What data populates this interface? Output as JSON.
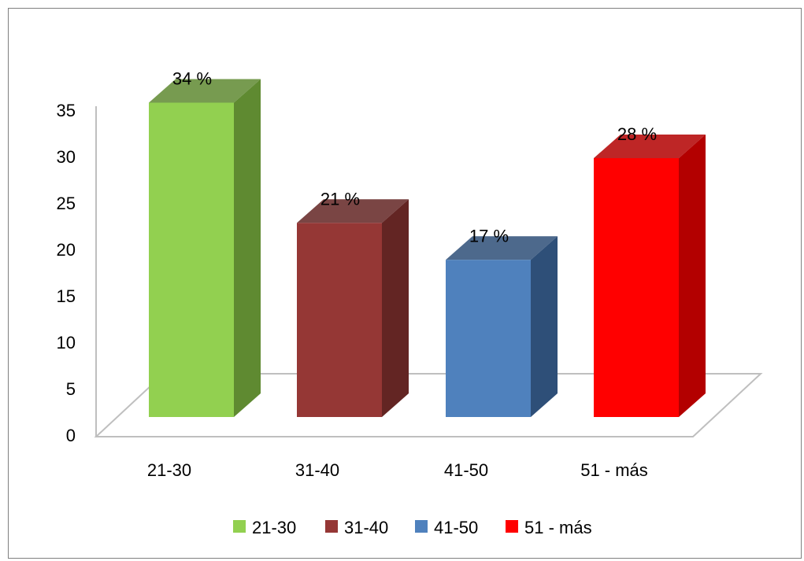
{
  "chart_data": {
    "type": "bar",
    "title": "",
    "xlabel": "",
    "ylabel": "",
    "categories": [
      "21-30",
      "31-40",
      "41-50",
      "51 - más"
    ],
    "values": [
      34,
      21,
      17,
      28
    ],
    "data_labels": [
      "34 %",
      "21 %",
      "17 %",
      "28 %"
    ],
    "colors": [
      "#92d050",
      "#953735",
      "#4f81bd",
      "#ff0000"
    ],
    "side_colors": [
      "#5f8a31",
      "#632523",
      "#2e4f78",
      "#b30000"
    ],
    "ylim": [
      0,
      35
    ],
    "yticks": [
      "0",
      "5",
      "10",
      "15",
      "20",
      "25",
      "30",
      "35"
    ],
    "legend": {
      "position": "bottom",
      "entries": [
        "21-30",
        "31-40",
        "41-50",
        "51 - más"
      ]
    },
    "grid": false,
    "style": "3d-column"
  }
}
